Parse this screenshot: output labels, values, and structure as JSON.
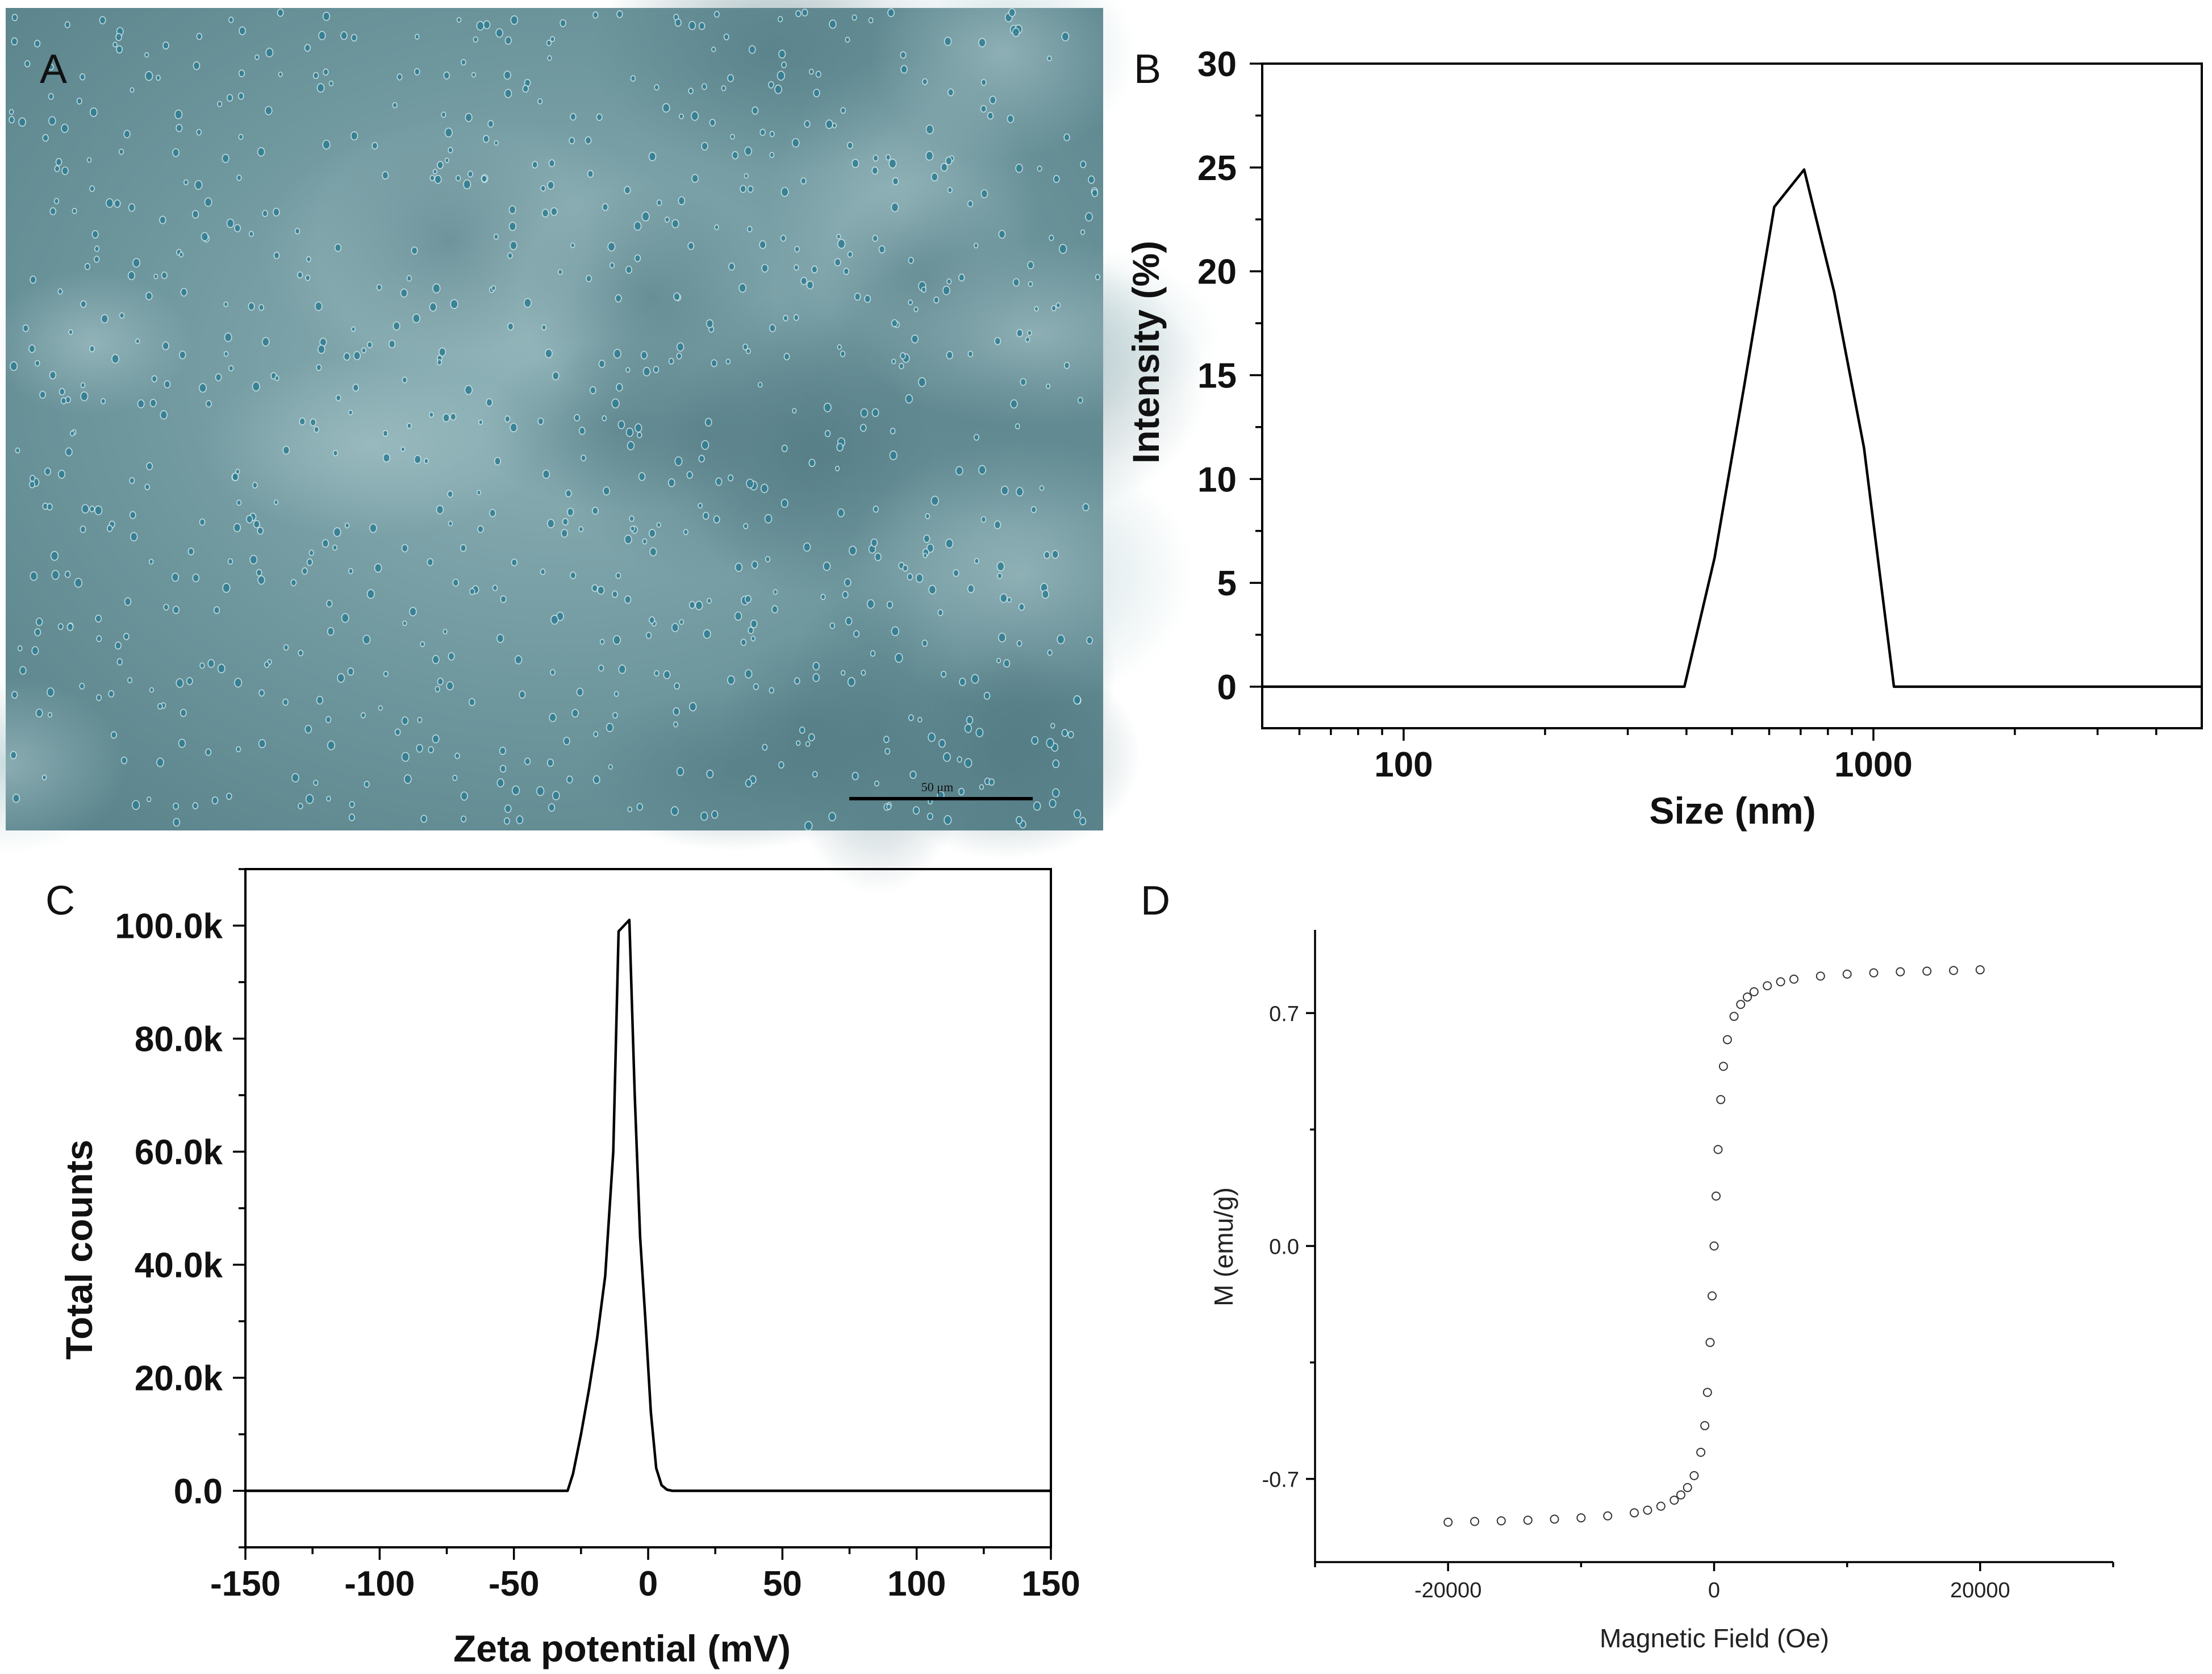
{
  "panels": {
    "a": {
      "letter": "A",
      "scalebar_label": "50 μm"
    },
    "b": {
      "letter": "B"
    },
    "c": {
      "letter": "C"
    },
    "d": {
      "letter": "D"
    }
  },
  "chart_data": [
    {
      "panel": "B",
      "type": "line",
      "title": "",
      "xlabel": "Size (nm)",
      "ylabel": "Intensity (%)",
      "xscale": "log",
      "xlim": [
        50,
        5000
      ],
      "ylim": [
        -2,
        30
      ],
      "xticks": [
        100,
        1000
      ],
      "xtick_labels": [
        "100",
        "1000"
      ],
      "yticks": [
        0,
        5,
        10,
        15,
        20,
        25,
        30
      ],
      "ytick_labels": [
        "0",
        "5",
        "10",
        "15",
        "20",
        "25",
        "30"
      ],
      "grid": false,
      "series": [
        {
          "x": [
            50,
            396,
            459,
            531,
            615,
            712,
            825,
            955,
            1106,
            5000
          ],
          "y": [
            0,
            0,
            6.2,
            14.5,
            23.1,
            24.9,
            19.0,
            11.5,
            0,
            0
          ]
        }
      ]
    },
    {
      "panel": "C",
      "type": "line",
      "title": "",
      "xlabel": "Zeta potential (mV)",
      "ylabel": "Total counts",
      "xlim": [
        -150,
        150
      ],
      "ylim": [
        -10000,
        110000
      ],
      "xticks": [
        -150,
        -100,
        -50,
        0,
        50,
        100,
        150
      ],
      "xtick_labels": [
        "-150",
        "-100",
        "-50",
        "0",
        "50",
        "100",
        "150"
      ],
      "yticks": [
        0,
        20000,
        40000,
        60000,
        80000,
        100000
      ],
      "ytick_labels": [
        "0.0",
        "20.0k",
        "40.0k",
        "60.0k",
        "80.0k",
        "100.0k"
      ],
      "grid": false,
      "series": [
        {
          "x": [
            -150,
            -30,
            -28,
            -25,
            -22,
            -19,
            -16,
            -13,
            -11,
            -9,
            -7,
            -5,
            -3,
            -1,
            1,
            3,
            5,
            7,
            9,
            12,
            150
          ],
          "y": [
            0,
            0,
            3000,
            10000,
            18000,
            27000,
            38000,
            60000,
            99000,
            100000,
            101000,
            70000,
            45000,
            30000,
            14000,
            4000,
            1000,
            200,
            0,
            0,
            0
          ]
        }
      ]
    },
    {
      "panel": "D",
      "type": "scatter",
      "title": "",
      "xlabel": "Magnetic Field (Oe)",
      "ylabel": "M (emu/g)",
      "xlim": [
        -30000,
        30000
      ],
      "ylim": [
        -0.95,
        0.95
      ],
      "xticks": [
        -20000,
        0,
        20000
      ],
      "xtick_labels": [
        "-20000",
        "0",
        "20000"
      ],
      "yticks": [
        -0.7,
        0.0,
        0.7
      ],
      "ytick_labels": [
        "-0.7",
        "0.0",
        "0.7"
      ],
      "grid": false,
      "marker": "open-circle",
      "series": [
        {
          "x": [
            -20000,
            -18000,
            -16000,
            -14000,
            -12000,
            -10000,
            -8000,
            -6000,
            -5000,
            -4000,
            -3000,
            -2500,
            -2000,
            -1500,
            -1000,
            -700,
            -500,
            -300,
            -150,
            0,
            150,
            300,
            500,
            700,
            1000,
            1500,
            2000,
            2500,
            3000,
            4000,
            5000,
            6000,
            8000,
            10000,
            12000,
            14000,
            16000,
            18000,
            20000
          ],
          "y": [
            -0.83,
            -0.828,
            -0.826,
            -0.824,
            -0.821,
            -0.817,
            -0.811,
            -0.802,
            -0.794,
            -0.782,
            -0.764,
            -0.748,
            -0.726,
            -0.69,
            -0.62,
            -0.54,
            -0.44,
            -0.29,
            -0.15,
            0.0,
            0.15,
            0.29,
            0.44,
            0.54,
            0.62,
            0.69,
            0.726,
            0.748,
            0.764,
            0.782,
            0.794,
            0.802,
            0.811,
            0.817,
            0.821,
            0.824,
            0.826,
            0.828,
            0.83
          ]
        }
      ]
    }
  ]
}
